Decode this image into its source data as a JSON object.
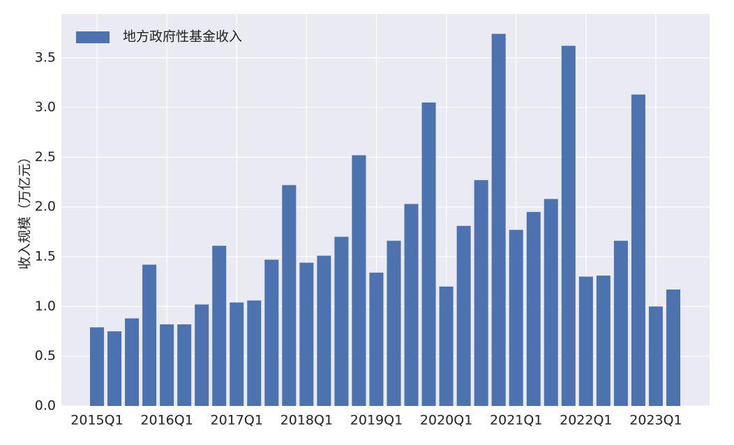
{
  "chart_data": {
    "type": "bar",
    "ylabel": "收入规模（万亿元）",
    "categories": [
      "2015Q1",
      null,
      null,
      null,
      "2016Q1",
      null,
      null,
      null,
      "2017Q1",
      null,
      null,
      null,
      "2018Q1",
      null,
      null,
      null,
      "2019Q1",
      null,
      null,
      null,
      "2020Q1",
      null,
      null,
      null,
      "2021Q1",
      null,
      null,
      null,
      "2022Q1",
      null,
      null,
      null,
      "2023Q1",
      null
    ],
    "series": [
      {
        "name": "地方政府性基金收入",
        "color": "#4c72b0",
        "values": [
          0.79,
          0.75,
          0.88,
          1.42,
          0.82,
          0.82,
          1.02,
          1.61,
          1.04,
          1.06,
          1.47,
          2.22,
          1.44,
          1.51,
          1.7,
          2.52,
          1.34,
          1.66,
          2.03,
          3.05,
          1.2,
          1.81,
          2.27,
          3.74,
          1.77,
          1.95,
          2.08,
          3.62,
          1.3,
          1.31,
          1.66,
          3.13,
          1.0,
          1.17
        ]
      }
    ],
    "ylim": [
      0,
      3.94
    ],
    "yticks": [
      {
        "value": 0,
        "label": "0.0"
      },
      0.5,
      {
        "value": 1,
        "label": "1.0"
      },
      1.5,
      {
        "value": 2,
        "label": "2.0"
      },
      2.5,
      {
        "value": 3,
        "label": "3.0"
      },
      3.5
    ],
    "grid": true,
    "legend": "upper left"
  }
}
